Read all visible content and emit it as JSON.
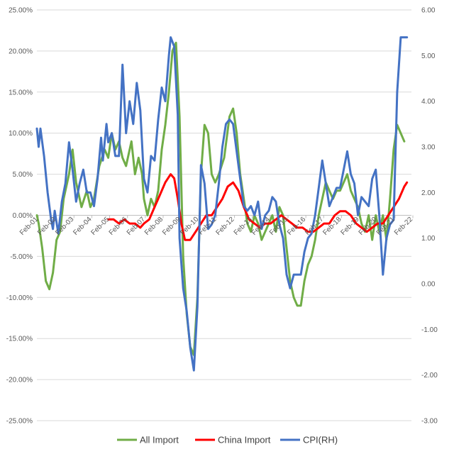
{
  "chart_data": {
    "type": "line",
    "grid": true,
    "legend_position": "bottom",
    "y_left": {
      "lim": [
        -0.25,
        0.25
      ],
      "ticks": [
        0.25,
        0.2,
        0.15,
        0.1,
        0.05,
        0.0,
        -0.05,
        -0.1,
        -0.15,
        -0.2,
        -0.25
      ],
      "tick_labels": [
        "25.00%",
        "20.00%",
        "15.00%",
        "10.00%",
        "5.00%",
        "0.00%",
        "-5.00%",
        "-10.00%",
        "-15.00%",
        "-20.00%",
        "-25.00%"
      ]
    },
    "y_right": {
      "lim": [
        -3.0,
        6.0
      ],
      "ticks": [
        6.0,
        5.0,
        4.0,
        3.0,
        2.0,
        1.0,
        0.0,
        -1.0,
        -2.0,
        -3.0
      ],
      "tick_labels": [
        "6.00",
        "5.00",
        "4.00",
        "3.00",
        "2.00",
        "1.00",
        "0.00",
        "-1.00",
        "-2.00",
        "-3.00"
      ]
    },
    "x": {
      "lim": [
        2001.0,
        2022.0
      ],
      "ticks": [
        2001.08,
        2002.08,
        2003.08,
        2004.08,
        2005.08,
        2006.08,
        2007.08,
        2008.08,
        2009.08,
        2010.08,
        2011.08,
        2012.08,
        2013.08,
        2014.08,
        2015.08,
        2016.08,
        2017.08,
        2018.08,
        2019.08,
        2020.08,
        2021.08,
        2022.08
      ],
      "tick_labels": [
        "Feb-01",
        "Feb-02",
        "Feb-03",
        "Feb-04",
        "Feb-05",
        "Feb-06",
        "Feb-07",
        "Feb-08",
        "Feb-09",
        "Feb-10",
        "Feb-11",
        "Feb-12",
        "Feb-13",
        "Feb-14",
        "Feb-15",
        "Feb-16",
        "Feb-17",
        "Feb-18",
        "Feb-19",
        "Feb-20",
        "Feb-21",
        "Feb-22"
      ]
    },
    "series": [
      {
        "name": "All Import",
        "color": "#70ad47",
        "axis": "left",
        "points": [
          [
            2001.0,
            0.0
          ],
          [
            2001.1,
            -0.01
          ],
          [
            2001.3,
            -0.04
          ],
          [
            2001.5,
            -0.08
          ],
          [
            2001.7,
            -0.09
          ],
          [
            2001.9,
            -0.07
          ],
          [
            2002.1,
            -0.03
          ],
          [
            2002.3,
            -0.02
          ],
          [
            2002.5,
            0.02
          ],
          [
            2002.8,
            0.05
          ],
          [
            2003.0,
            0.08
          ],
          [
            2003.2,
            0.04
          ],
          [
            2003.5,
            0.01
          ],
          [
            2003.8,
            0.03
          ],
          [
            2004.0,
            0.01
          ],
          [
            2004.2,
            0.02
          ],
          [
            2004.5,
            0.06
          ],
          [
            2004.8,
            0.08
          ],
          [
            2005.0,
            0.07
          ],
          [
            2005.2,
            0.1
          ],
          [
            2005.4,
            0.08
          ],
          [
            2005.6,
            0.09
          ],
          [
            2005.8,
            0.07
          ],
          [
            2006.0,
            0.06
          ],
          [
            2006.3,
            0.09
          ],
          [
            2006.5,
            0.05
          ],
          [
            2006.7,
            0.07
          ],
          [
            2006.9,
            0.05
          ],
          [
            2007.0,
            0.02
          ],
          [
            2007.2,
            0.0
          ],
          [
            2007.4,
            0.02
          ],
          [
            2007.6,
            0.01
          ],
          [
            2007.8,
            0.03
          ],
          [
            2008.0,
            0.08
          ],
          [
            2008.2,
            0.11
          ],
          [
            2008.4,
            0.15
          ],
          [
            2008.6,
            0.2
          ],
          [
            2008.8,
            0.21
          ],
          [
            2009.0,
            0.12
          ],
          [
            2009.2,
            -0.05
          ],
          [
            2009.4,
            -0.12
          ],
          [
            2009.6,
            -0.16
          ],
          [
            2009.8,
            -0.17
          ],
          [
            2010.0,
            -0.1
          ],
          [
            2010.2,
            0.05
          ],
          [
            2010.4,
            0.11
          ],
          [
            2010.6,
            0.1
          ],
          [
            2010.8,
            0.05
          ],
          [
            2011.0,
            0.04
          ],
          [
            2011.2,
            0.05
          ],
          [
            2011.5,
            0.07
          ],
          [
            2011.8,
            0.12
          ],
          [
            2012.0,
            0.13
          ],
          [
            2012.2,
            0.1
          ],
          [
            2012.4,
            0.05
          ],
          [
            2012.6,
            0.02
          ],
          [
            2012.8,
            -0.01
          ],
          [
            2013.0,
            -0.02
          ],
          [
            2013.2,
            0.0
          ],
          [
            2013.4,
            -0.01
          ],
          [
            2013.6,
            -0.03
          ],
          [
            2013.8,
            -0.02
          ],
          [
            2014.0,
            -0.01
          ],
          [
            2014.2,
            0.0
          ],
          [
            2014.4,
            -0.02
          ],
          [
            2014.6,
            0.01
          ],
          [
            2014.8,
            0.0
          ],
          [
            2015.0,
            -0.04
          ],
          [
            2015.2,
            -0.08
          ],
          [
            2015.4,
            -0.1
          ],
          [
            2015.6,
            -0.11
          ],
          [
            2015.8,
            -0.11
          ],
          [
            2016.0,
            -0.08
          ],
          [
            2016.2,
            -0.06
          ],
          [
            2016.4,
            -0.05
          ],
          [
            2016.6,
            -0.03
          ],
          [
            2016.8,
            0.0
          ],
          [
            2017.0,
            0.02
          ],
          [
            2017.2,
            0.04
          ],
          [
            2017.4,
            0.03
          ],
          [
            2017.6,
            0.02
          ],
          [
            2017.8,
            0.03
          ],
          [
            2018.0,
            0.03
          ],
          [
            2018.2,
            0.04
          ],
          [
            2018.4,
            0.05
          ],
          [
            2018.6,
            0.03
          ],
          [
            2018.8,
            0.02
          ],
          [
            2019.0,
            0.01
          ],
          [
            2019.2,
            -0.01
          ],
          [
            2019.4,
            -0.02
          ],
          [
            2019.6,
            0.0
          ],
          [
            2019.8,
            -0.03
          ],
          [
            2020.0,
            0.0
          ],
          [
            2020.2,
            -0.02
          ],
          [
            2020.4,
            0.0
          ],
          [
            2020.6,
            -0.03
          ],
          [
            2020.8,
            0.02
          ],
          [
            2021.0,
            0.08
          ],
          [
            2021.2,
            0.11
          ],
          [
            2021.4,
            0.1
          ],
          [
            2021.6,
            0.09
          ]
        ]
      },
      {
        "name": "China Import",
        "color": "#ff0000",
        "axis": "left",
        "points": [
          [
            2005.0,
            -0.005
          ],
          [
            2005.3,
            -0.005
          ],
          [
            2005.6,
            -0.01
          ],
          [
            2005.9,
            -0.005
          ],
          [
            2006.2,
            -0.01
          ],
          [
            2006.5,
            -0.01
          ],
          [
            2006.8,
            -0.015
          ],
          [
            2007.0,
            -0.01
          ],
          [
            2007.3,
            -0.005
          ],
          [
            2007.6,
            0.01
          ],
          [
            2007.9,
            0.025
          ],
          [
            2008.2,
            0.04
          ],
          [
            2008.5,
            0.05
          ],
          [
            2008.7,
            0.045
          ],
          [
            2008.9,
            0.02
          ],
          [
            2009.1,
            -0.01
          ],
          [
            2009.3,
            -0.03
          ],
          [
            2009.6,
            -0.03
          ],
          [
            2009.9,
            -0.02
          ],
          [
            2010.2,
            -0.01
          ],
          [
            2010.5,
            0.0
          ],
          [
            2010.8,
            0.0
          ],
          [
            2011.1,
            0.01
          ],
          [
            2011.4,
            0.02
          ],
          [
            2011.7,
            0.035
          ],
          [
            2012.0,
            0.04
          ],
          [
            2012.3,
            0.03
          ],
          [
            2012.6,
            0.01
          ],
          [
            2012.9,
            -0.005
          ],
          [
            2013.2,
            -0.01
          ],
          [
            2013.5,
            -0.015
          ],
          [
            2013.8,
            -0.01
          ],
          [
            2014.1,
            -0.01
          ],
          [
            2014.4,
            -0.005
          ],
          [
            2014.7,
            0.0
          ],
          [
            2015.0,
            -0.005
          ],
          [
            2015.3,
            -0.01
          ],
          [
            2015.6,
            -0.015
          ],
          [
            2015.9,
            -0.015
          ],
          [
            2016.2,
            -0.02
          ],
          [
            2016.5,
            -0.02
          ],
          [
            2016.8,
            -0.015
          ],
          [
            2017.1,
            -0.01
          ],
          [
            2017.4,
            -0.01
          ],
          [
            2017.7,
            0.0
          ],
          [
            2018.0,
            0.005
          ],
          [
            2018.3,
            0.005
          ],
          [
            2018.6,
            0.0
          ],
          [
            2018.9,
            -0.01
          ],
          [
            2019.2,
            -0.015
          ],
          [
            2019.5,
            -0.02
          ],
          [
            2019.8,
            -0.015
          ],
          [
            2020.1,
            -0.01
          ],
          [
            2020.4,
            -0.01
          ],
          [
            2020.7,
            0.0
          ],
          [
            2021.0,
            0.01
          ],
          [
            2021.3,
            0.02
          ],
          [
            2021.6,
            0.035
          ],
          [
            2021.75,
            0.04
          ]
        ]
      },
      {
        "name": "CPI(RH)",
        "color": "#4472c4",
        "axis": "right",
        "points": [
          [
            2001.0,
            3.4
          ],
          [
            2001.1,
            3.0
          ],
          [
            2001.2,
            3.4
          ],
          [
            2001.4,
            2.8
          ],
          [
            2001.6,
            2.0
          ],
          [
            2001.8,
            1.4
          ],
          [
            2001.9,
            1.2
          ],
          [
            2002.0,
            1.6
          ],
          [
            2002.2,
            1.1
          ],
          [
            2002.4,
            1.8
          ],
          [
            2002.6,
            2.2
          ],
          [
            2002.8,
            3.1
          ],
          [
            2003.0,
            2.5
          ],
          [
            2003.2,
            1.8
          ],
          [
            2003.4,
            2.2
          ],
          [
            2003.6,
            2.5
          ],
          [
            2003.8,
            2.0
          ],
          [
            2004.0,
            2.0
          ],
          [
            2004.2,
            1.7
          ],
          [
            2004.4,
            2.3
          ],
          [
            2004.6,
            3.2
          ],
          [
            2004.7,
            2.7
          ],
          [
            2004.9,
            3.5
          ],
          [
            2005.0,
            3.1
          ],
          [
            2005.2,
            3.3
          ],
          [
            2005.4,
            2.8
          ],
          [
            2005.6,
            2.8
          ],
          [
            2005.8,
            4.8
          ],
          [
            2006.0,
            3.3
          ],
          [
            2006.2,
            4.0
          ],
          [
            2006.4,
            3.5
          ],
          [
            2006.6,
            4.4
          ],
          [
            2006.8,
            3.8
          ],
          [
            2007.0,
            2.3
          ],
          [
            2007.2,
            2.0
          ],
          [
            2007.4,
            2.8
          ],
          [
            2007.6,
            2.7
          ],
          [
            2007.8,
            3.6
          ],
          [
            2008.0,
            4.3
          ],
          [
            2008.2,
            4.0
          ],
          [
            2008.4,
            5.0
          ],
          [
            2008.5,
            5.4
          ],
          [
            2008.7,
            5.2
          ],
          [
            2008.9,
            3.7
          ],
          [
            2009.0,
            1.0
          ],
          [
            2009.2,
            -0.1
          ],
          [
            2009.4,
            -0.6
          ],
          [
            2009.6,
            -1.4
          ],
          [
            2009.8,
            -1.9
          ],
          [
            2010.0,
            -0.5
          ],
          [
            2010.2,
            2.6
          ],
          [
            2010.4,
            2.2
          ],
          [
            2010.6,
            1.2
          ],
          [
            2010.8,
            1.3
          ],
          [
            2011.0,
            1.5
          ],
          [
            2011.2,
            2.2
          ],
          [
            2011.4,
            3.0
          ],
          [
            2011.6,
            3.5
          ],
          [
            2011.8,
            3.6
          ],
          [
            2012.0,
            3.5
          ],
          [
            2012.2,
            2.9
          ],
          [
            2012.4,
            2.3
          ],
          [
            2012.6,
            1.7
          ],
          [
            2012.8,
            1.6
          ],
          [
            2013.0,
            1.7
          ],
          [
            2013.2,
            1.5
          ],
          [
            2013.4,
            1.8
          ],
          [
            2013.6,
            1.2
          ],
          [
            2013.8,
            1.5
          ],
          [
            2014.0,
            1.6
          ],
          [
            2014.2,
            1.9
          ],
          [
            2014.4,
            1.8
          ],
          [
            2014.6,
            1.3
          ],
          [
            2014.8,
            1.0
          ],
          [
            2015.0,
            0.2
          ],
          [
            2015.2,
            -0.1
          ],
          [
            2015.4,
            0.2
          ],
          [
            2015.6,
            0.2
          ],
          [
            2015.8,
            0.2
          ],
          [
            2016.0,
            0.7
          ],
          [
            2016.2,
            1.0
          ],
          [
            2016.4,
            1.1
          ],
          [
            2016.6,
            1.5
          ],
          [
            2016.8,
            2.1
          ],
          [
            2017.0,
            2.7
          ],
          [
            2017.2,
            2.2
          ],
          [
            2017.4,
            1.7
          ],
          [
            2017.6,
            1.9
          ],
          [
            2017.8,
            2.1
          ],
          [
            2018.0,
            2.1
          ],
          [
            2018.2,
            2.5
          ],
          [
            2018.4,
            2.9
          ],
          [
            2018.6,
            2.4
          ],
          [
            2018.8,
            2.2
          ],
          [
            2019.0,
            1.5
          ],
          [
            2019.2,
            1.9
          ],
          [
            2019.4,
            1.8
          ],
          [
            2019.6,
            1.7
          ],
          [
            2019.8,
            2.3
          ],
          [
            2020.0,
            2.5
          ],
          [
            2020.2,
            1.5
          ],
          [
            2020.4,
            0.2
          ],
          [
            2020.6,
            1.0
          ],
          [
            2020.8,
            1.3
          ],
          [
            2021.0,
            1.4
          ],
          [
            2021.2,
            4.2
          ],
          [
            2021.4,
            5.4
          ],
          [
            2021.6,
            5.4
          ],
          [
            2021.75,
            5.4
          ]
        ]
      }
    ]
  }
}
